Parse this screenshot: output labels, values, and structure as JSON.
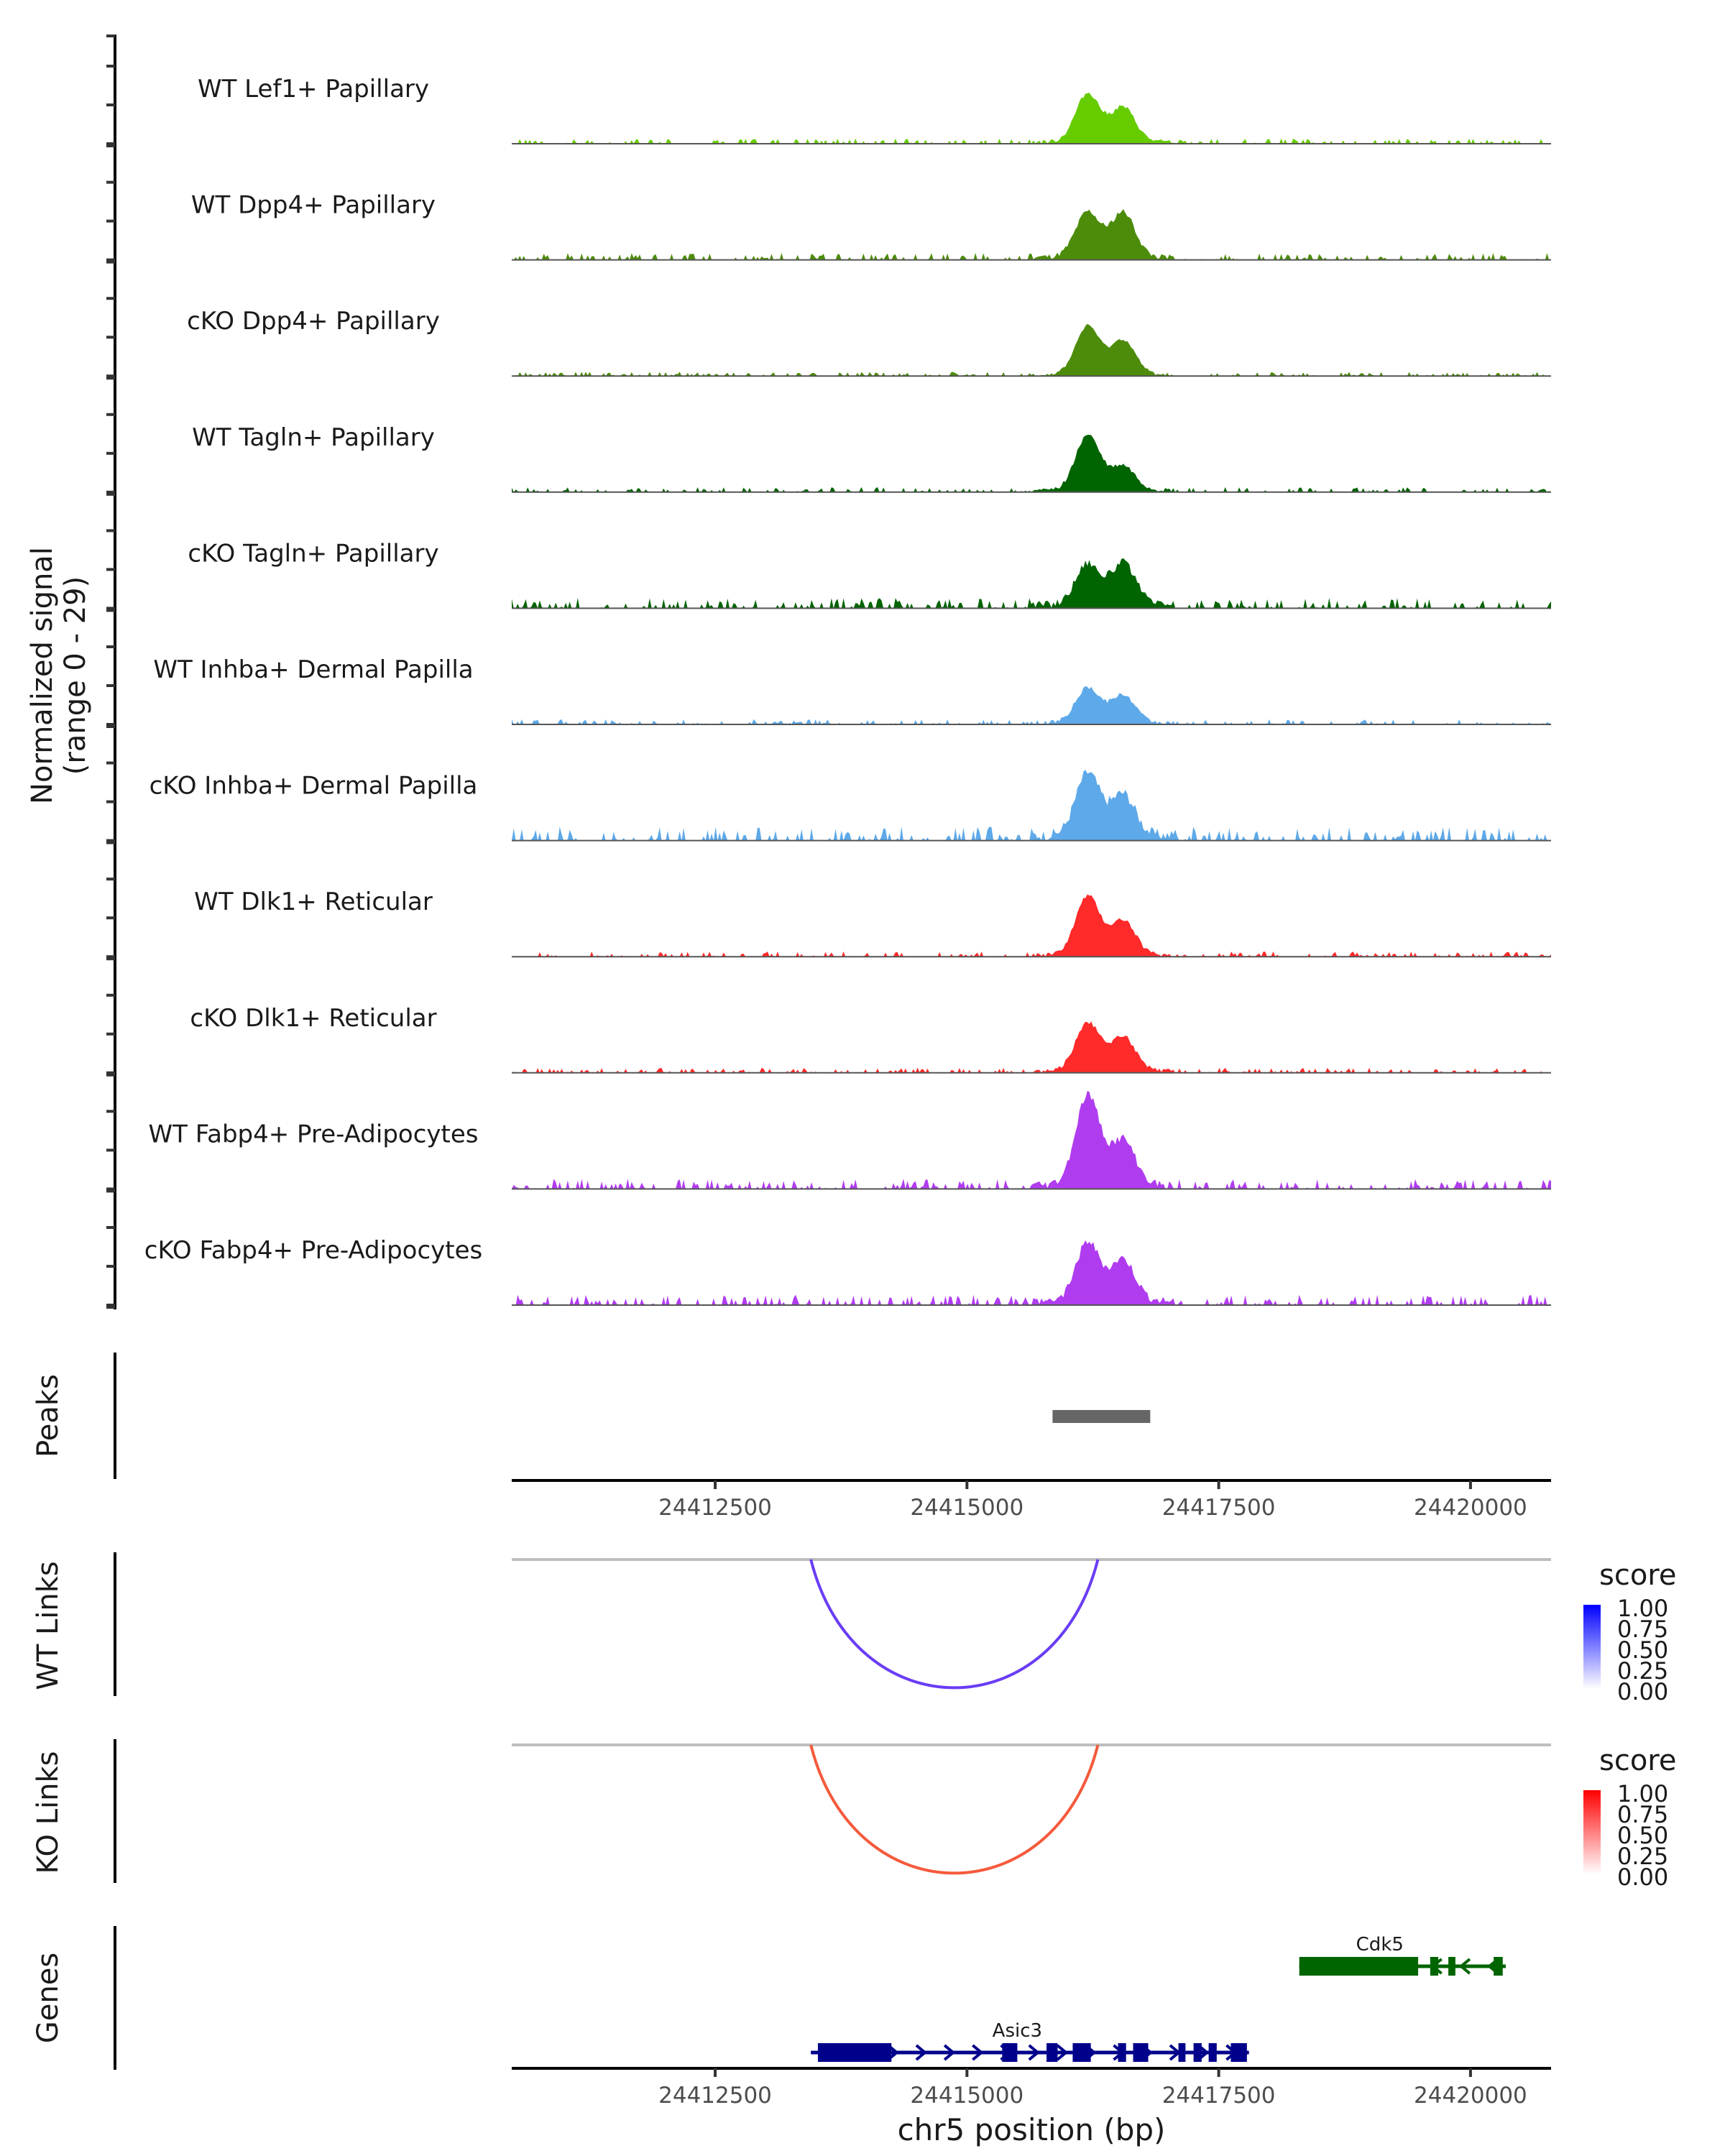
{
  "chart_data": {
    "type": "area",
    "title": "",
    "region": {
      "chrom": "chr5",
      "start": 24410480,
      "end": 24420800
    },
    "xlabel": "chr5 position (bp)",
    "ylabel": "Normalized signal\n(range 0 - 29)",
    "ylabel_line1": "Normalized signal",
    "ylabel_line2": "(range 0 - 29)",
    "ylim": [
      0,
      29
    ],
    "x_ticks": [
      24412500,
      24415000,
      24417500,
      24420000
    ],
    "x_tick_labels": [
      "24412500",
      "24415000",
      "24417500",
      "24420000"
    ],
    "tracks": [
      {
        "name": "WT Lef1+ Papillary",
        "color": "#66CC00",
        "peaks": [
          [
            24416200,
            14
          ],
          [
            24416550,
            10
          ]
        ],
        "noise": 1.5
      },
      {
        "name": "WT Dpp4+ Papillary",
        "color": "#4C8C0A",
        "peaks": [
          [
            24416200,
            13
          ],
          [
            24416550,
            13
          ]
        ],
        "noise": 2.0
      },
      {
        "name": "cKO Dpp4+ Papillary",
        "color": "#4C8C0A",
        "peaks": [
          [
            24416200,
            14
          ],
          [
            24416550,
            10
          ]
        ],
        "noise": 1.2
      },
      {
        "name": "WT Tagln+ Papillary",
        "color": "#006400",
        "peaks": [
          [
            24416200,
            16
          ],
          [
            24416550,
            7
          ]
        ],
        "noise": 1.5
      },
      {
        "name": "cKO Tagln+ Papillary",
        "color": "#006400",
        "peaks": [
          [
            24416200,
            12
          ],
          [
            24416550,
            12
          ]
        ],
        "noise": 3.0
      },
      {
        "name": "WT Inhba+ Dermal Papilla",
        "color": "#5DA9E9",
        "peaks": [
          [
            24416200,
            10
          ],
          [
            24416550,
            8
          ]
        ],
        "noise": 1.5
      },
      {
        "name": "cKO Inhba+ Dermal Papilla",
        "color": "#5DA9E9",
        "peaks": [
          [
            24416200,
            18
          ],
          [
            24416550,
            12
          ]
        ],
        "noise": 4.0
      },
      {
        "name": "WT Dlk1+ Reticular",
        "color": "#FF2A2A",
        "peaks": [
          [
            24416200,
            17
          ],
          [
            24416550,
            10
          ]
        ],
        "noise": 1.5
      },
      {
        "name": "cKO Dlk1+ Reticular",
        "color": "#FF2A2A",
        "peaks": [
          [
            24416200,
            14
          ],
          [
            24416550,
            10
          ]
        ],
        "noise": 1.5
      },
      {
        "name": "WT Fabp4+ Pre-Adipocytes",
        "color": "#B03CF0",
        "peaks": [
          [
            24416200,
            26
          ],
          [
            24416550,
            13
          ]
        ],
        "noise": 3.0
      },
      {
        "name": "cKO Fabp4+ Pre-Adipocytes",
        "color": "#B03CF0",
        "peaks": [
          [
            24416200,
            17
          ],
          [
            24416550,
            12
          ]
        ],
        "noise": 3.0
      }
    ],
    "peaks_track": {
      "label": "Peaks",
      "ranges": [
        [
          24415850,
          24416820
        ]
      ],
      "color": "#666666"
    },
    "wt_links": {
      "label": "WT Links",
      "start": 24413450,
      "end": 24416300,
      "score": 0.75,
      "color": "#6A3DF5",
      "legend": {
        "title": "score",
        "labels": [
          "1.00",
          "0.75",
          "0.50",
          "0.25",
          "0.00"
        ],
        "low": "#FFFFFF",
        "high": "#0000FF"
      }
    },
    "ko_links": {
      "label": "KO Links",
      "start": 24413450,
      "end": 24416300,
      "score": 0.75,
      "color": "#F55A3C",
      "legend": {
        "title": "score",
        "labels": [
          "1.00",
          "0.75",
          "0.50",
          "0.25",
          "0.00"
        ],
        "low": "#FFFFFF",
        "high": "#FF0000"
      }
    },
    "genes_track": {
      "label": "Genes",
      "genes": [
        {
          "name": "Cdk5",
          "strand": "-",
          "start": 24418300,
          "end": 24420350,
          "color": "#006400",
          "exons": [
            [
              24418300,
              24419480
            ],
            [
              24419600,
              24419680
            ],
            [
              24419780,
              24419850
            ],
            [
              24420230,
              24420320
            ]
          ]
        },
        {
          "name": "Asic3",
          "strand": "+",
          "start": 24413450,
          "end": 24417800,
          "color": "#00008B",
          "exons": [
            [
              24413520,
              24414250
            ],
            [
              24415350,
              24415500
            ],
            [
              24415790,
              24415900
            ],
            [
              24416050,
              24416230
            ],
            [
              24416500,
              24416580
            ],
            [
              24416650,
              24416800
            ],
            [
              24417100,
              24417170
            ],
            [
              24417250,
              24417330
            ],
            [
              24417400,
              24417480
            ],
            [
              24417620,
              24417780
            ]
          ]
        }
      ]
    }
  }
}
